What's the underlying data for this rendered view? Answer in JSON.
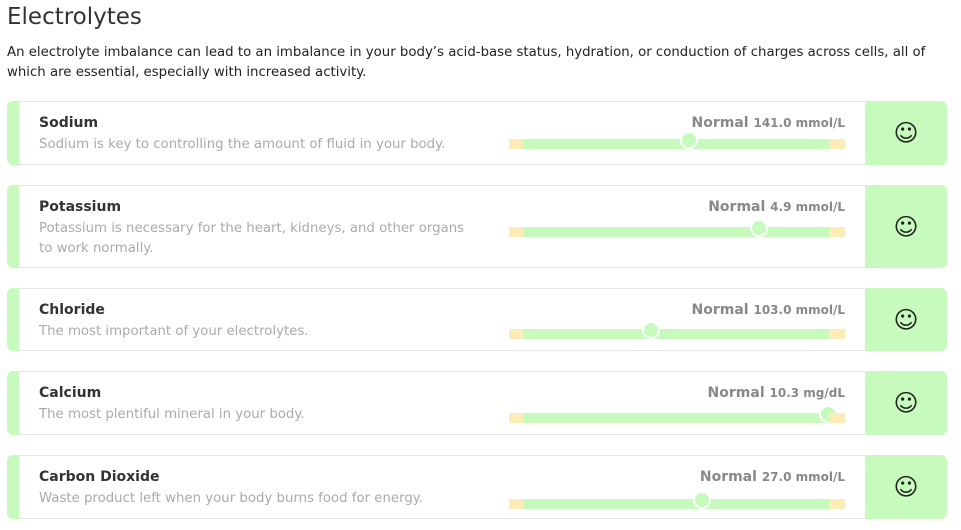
{
  "title": "Electrolytes",
  "intro": "An electrolyte imbalance can lead to an imbalance in your body’s acid-base status, hydration, or conduction of charges across cells, all of which are essential, especially with increased activity.",
  "colors": {
    "normal": "#c6fbbd",
    "borderline": "#fdecb8"
  },
  "items": [
    {
      "name": "Sodium",
      "desc": "Sodium is key to controlling the amount of fluid in your body.",
      "status": "Normal",
      "value": "141.0 mmol/L",
      "position": 0.536,
      "icon": "smiley-icon"
    },
    {
      "name": "Potassium",
      "desc": "Potassium is necessary for the heart, kidneys, and other organs to work normally.",
      "status": "Normal",
      "value": "4.9 mmol/L",
      "position": 0.744,
      "icon": "smiley-icon"
    },
    {
      "name": "Chloride",
      "desc": "The most important of your electrolytes.",
      "status": "Normal",
      "value": "103.0 mmol/L",
      "position": 0.423,
      "icon": "smiley-icon"
    },
    {
      "name": "Calcium",
      "desc": "The most plentiful mineral in your body.",
      "status": "Normal",
      "value": "10.3 mg/dL",
      "position": 0.949,
      "icon": "smiley-icon"
    },
    {
      "name": "Carbon Dioxide",
      "desc": "Waste product left when your body burns food for energy.",
      "status": "Normal",
      "value": "27.0 mmol/L",
      "position": 0.574,
      "icon": "smiley-icon"
    }
  ]
}
